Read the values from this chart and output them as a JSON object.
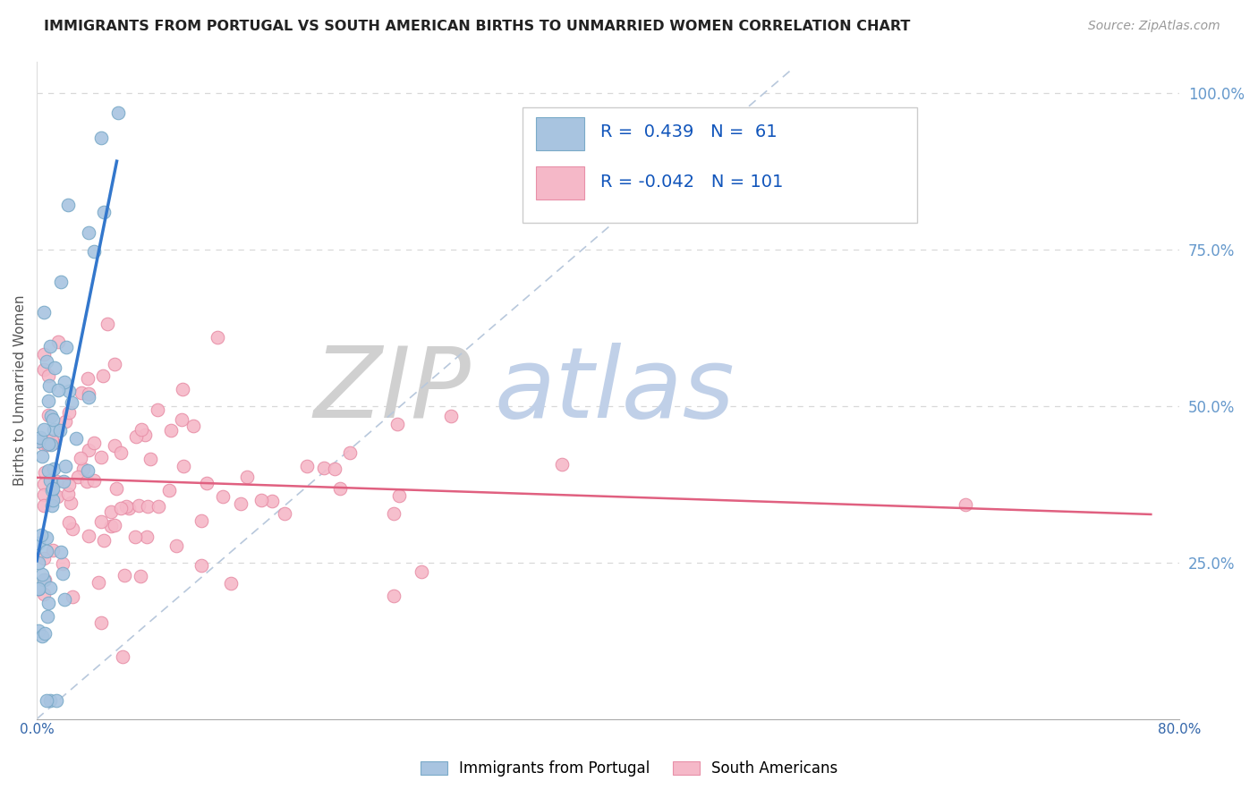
{
  "title": "IMMIGRANTS FROM PORTUGAL VS SOUTH AMERICAN BIRTHS TO UNMARRIED WOMEN CORRELATION CHART",
  "source": "Source: ZipAtlas.com",
  "ylabel": "Births to Unmarried Women",
  "legend_blue_label": "Immigrants from Portugal",
  "legend_pink_label": "South Americans",
  "blue_R": "0.439",
  "blue_N": "61",
  "pink_R": "-0.042",
  "pink_N": "101",
  "blue_scatter_color": "#a8c4e0",
  "blue_scatter_edge": "#7aaac8",
  "pink_scatter_color": "#f5b8c8",
  "pink_scatter_edge": "#e890a8",
  "blue_line_color": "#3377cc",
  "pink_line_color": "#e06080",
  "dashed_line_color": "#b8c8dc",
  "title_color": "#222222",
  "source_color": "#999999",
  "grid_color": "#d8d8d8",
  "right_axis_color": "#6699cc",
  "watermark_ZIP_color": "#d0d0d0",
  "watermark_atlas_color": "#c0d0e8",
  "xlim": [
    0.0,
    0.8
  ],
  "ylim": [
    0.0,
    1.05
  ]
}
